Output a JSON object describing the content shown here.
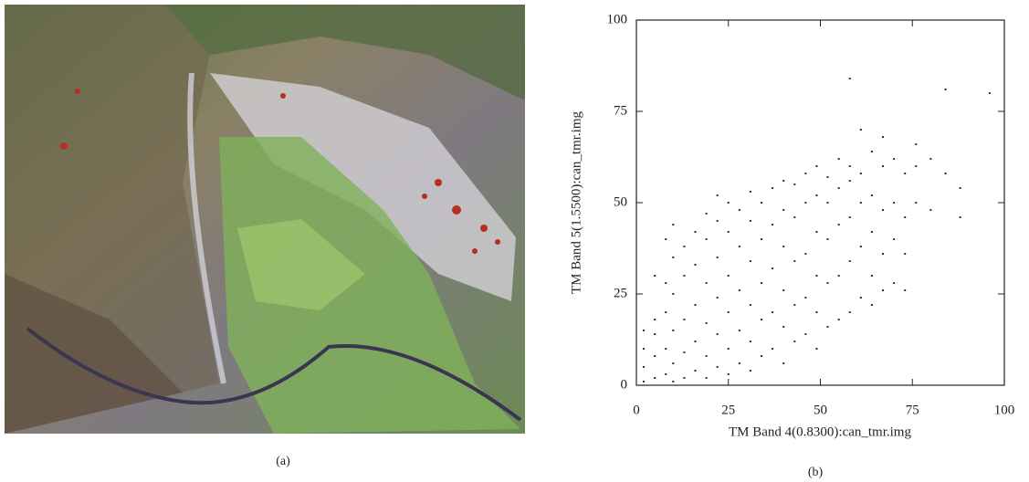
{
  "figure": {
    "panel_a_label": "(a)",
    "panel_b_label": "(b)"
  },
  "chart_data": {
    "type": "scatter",
    "xlabel": "TM Band 4(0.8300):can_tmr.img",
    "ylabel": "TM Band 5(1.5500):can_tmr.img",
    "x": [
      2,
      2,
      2,
      2,
      5,
      5,
      5,
      5,
      5,
      8,
      8,
      8,
      8,
      8,
      10,
      10,
      10,
      10,
      10,
      10,
      13,
      13,
      13,
      13,
      13,
      16,
      16,
      16,
      16,
      16,
      19,
      19,
      19,
      19,
      19,
      19,
      22,
      22,
      22,
      22,
      22,
      22,
      25,
      25,
      25,
      25,
      25,
      25,
      28,
      28,
      28,
      28,
      28,
      31,
      31,
      31,
      31,
      31,
      31,
      34,
      34,
      34,
      34,
      34,
      37,
      37,
      37,
      37,
      37,
      40,
      40,
      40,
      40,
      40,
      40,
      43,
      43,
      43,
      43,
      43,
      46,
      46,
      46,
      46,
      46,
      49,
      49,
      49,
      49,
      49,
      49,
      52,
      52,
      52,
      52,
      52,
      55,
      55,
      55,
      55,
      55,
      58,
      58,
      58,
      58,
      58,
      58,
      61,
      61,
      61,
      61,
      61,
      64,
      64,
      64,
      64,
      64,
      67,
      67,
      67,
      67,
      67,
      70,
      70,
      70,
      70,
      73,
      73,
      73,
      73,
      76,
      76,
      76,
      80,
      80,
      84,
      84,
      88,
      88,
      96
    ],
    "values": [
      1,
      5,
      10,
      15,
      2,
      8,
      14,
      18,
      30,
      3,
      10,
      20,
      28,
      40,
      1,
      6,
      15,
      25,
      35,
      44,
      2,
      9,
      18,
      30,
      38,
      4,
      12,
      22,
      33,
      42,
      2,
      8,
      17,
      28,
      40,
      47,
      5,
      14,
      24,
      35,
      45,
      52,
      3,
      10,
      20,
      30,
      42,
      50,
      6,
      15,
      26,
      38,
      48,
      4,
      12,
      22,
      34,
      45,
      53,
      8,
      18,
      28,
      40,
      50,
      10,
      20,
      32,
      44,
      54,
      6,
      16,
      26,
      38,
      48,
      56,
      12,
      22,
      34,
      46,
      55,
      14,
      24,
      36,
      50,
      58,
      10,
      20,
      30,
      42,
      52,
      60,
      16,
      28,
      40,
      50,
      57,
      18,
      30,
      44,
      54,
      62,
      20,
      34,
      46,
      56,
      60,
      84,
      24,
      38,
      50,
      58,
      70,
      22,
      30,
      42,
      52,
      64,
      26,
      36,
      48,
      60,
      68,
      28,
      40,
      50,
      62,
      26,
      36,
      46,
      58,
      50,
      60,
      66,
      48,
      62,
      58,
      81,
      54,
      46,
      80
    ],
    "color": "#333333",
    "xlim": [
      0,
      100
    ],
    "ylim": [
      0,
      100
    ],
    "xticks": [
      0,
      25,
      50,
      75,
      100
    ],
    "yticks": [
      0,
      25,
      50,
      75,
      100
    ]
  }
}
